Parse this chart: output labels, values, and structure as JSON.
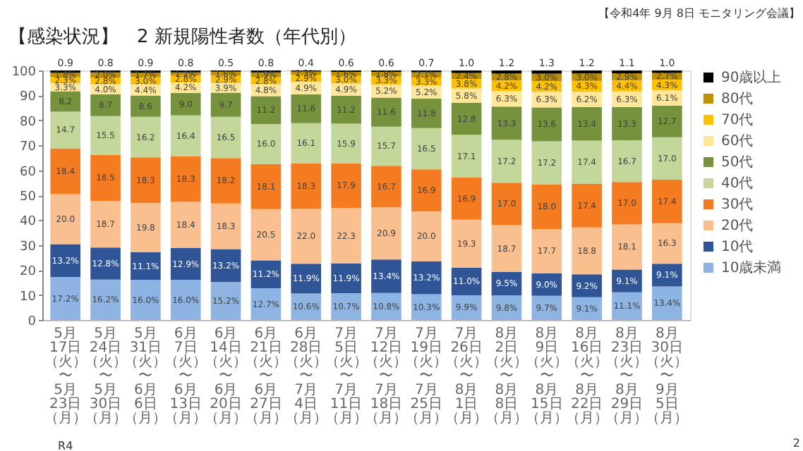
{
  "chart_data": {
    "type": "bar",
    "stacked": true,
    "title": "【感染状況】　2 新規陽性者数（年代別）",
    "annotations": [
      "【令和4年 9月 8日 モニタリング会議】",
      "R4",
      "2"
    ],
    "categories": [
      "5月17日（火）〜5月23日（月）",
      "5月24日（火）〜5月30日（月）",
      "5月31日（火）〜6月6日（月）",
      "6月7日（火）〜6月13日（月）",
      "6月14日（火）〜6月20日（月）",
      "6月21日（火）〜6月27日（月）",
      "6月28日（火）〜7月4日（月）",
      "7月5日（火）〜7月11日（月）",
      "7月12日（火）〜7月18日（月）",
      "7月19日（火）〜7月25日（月）",
      "7月26日（火）〜8月1日（月）",
      "8月2日（火）〜8月8日（月）",
      "8月9日（火）〜8月15日（月）",
      "8月16日（火）〜8月22日（月）",
      "8月23日（火）〜8月29日（月）",
      "8月30日（火）〜9月5日（月）"
    ],
    "ylim": [
      0,
      100
    ],
    "yticks": [
      0,
      10,
      20,
      30,
      40,
      50,
      60,
      70,
      80,
      90,
      100
    ],
    "legend": "right",
    "series": [
      {
        "name": "10歳未満",
        "color": "#8db4e2",
        "values": [
          17.2,
          16.2,
          16.0,
          16.0,
          15.2,
          12.7,
          10.6,
          10.7,
          10.8,
          10.3,
          9.9,
          9.8,
          9.7,
          9.1,
          11.1,
          13.4
        ],
        "value_labels": [
          "17.2%",
          "16.2%",
          "16.0%",
          "16.0%",
          "15.2%",
          "12.7%",
          "10.6%",
          "10.7%",
          "10.8%",
          "10.3%",
          "9.9%",
          "9.8%",
          "9.7%",
          "9.1%",
          "11.1%",
          "13.4%"
        ]
      },
      {
        "name": "10代",
        "color": "#2f5597",
        "values": [
          13.2,
          12.8,
          11.1,
          12.9,
          13.2,
          11.2,
          11.9,
          11.9,
          13.4,
          13.2,
          11.0,
          9.5,
          9.0,
          9.2,
          9.1,
          9.1
        ],
        "value_labels": [
          "13.2%",
          "12.8%",
          "11.1%",
          "12.9%",
          "13.2%",
          "11.2%",
          "11.9%",
          "11.9%",
          "13.4%",
          "13.2%",
          "11.0%",
          "9.5%",
          "9.0%",
          "9.2%",
          "9.1%",
          "9.1%"
        ]
      },
      {
        "name": "20代",
        "color": "#fabf8f",
        "values": [
          20.0,
          18.7,
          19.8,
          18.4,
          18.3,
          20.5,
          22.0,
          22.3,
          20.9,
          20.0,
          19.3,
          18.7,
          17.7,
          18.8,
          18.1,
          16.3
        ],
        "value_labels": [
          "20.0",
          "18.7",
          "19.8",
          "18.4",
          "18.3",
          "20.5",
          "22.0",
          "22.3",
          "20.9",
          "20.0",
          "19.3",
          "18.7",
          "17.7",
          "18.8",
          "18.1",
          "16.3"
        ]
      },
      {
        "name": "30代",
        "color": "#f47b20",
        "values": [
          18.4,
          18.5,
          18.3,
          18.3,
          18.2,
          18.1,
          18.3,
          17.9,
          16.7,
          16.9,
          16.9,
          17.0,
          18.0,
          17.4,
          17.0,
          17.4
        ],
        "value_labels": [
          "18.4",
          "18.5",
          "18.3",
          "18.3",
          "18.2",
          "18.1",
          "18.3",
          "17.9",
          "16.7",
          "16.9",
          "16.9",
          "17.0",
          "18.0",
          "17.4",
          "17.0",
          "17.4"
        ]
      },
      {
        "name": "40代",
        "color": "#c4d79b",
        "values": [
          14.7,
          15.5,
          16.2,
          16.4,
          16.5,
          16.0,
          16.1,
          15.9,
          15.7,
          16.5,
          17.1,
          17.2,
          17.2,
          17.4,
          16.7,
          17.0
        ],
        "value_labels": [
          "14.7",
          "15.5",
          "16.2",
          "16.4",
          "16.5",
          "16.0",
          "16.1",
          "15.9",
          "15.7",
          "16.5",
          "17.1",
          "17.2",
          "17.2",
          "17.4",
          "16.7",
          "17.0"
        ]
      },
      {
        "name": "50代",
        "color": "#76923c",
        "values": [
          8.2,
          8.7,
          8.6,
          9.0,
          9.7,
          11.2,
          11.6,
          11.2,
          11.6,
          11.8,
          12.8,
          13.3,
          13.6,
          13.4,
          13.3,
          12.7
        ],
        "value_labels": [
          "8.2",
          "8.7",
          "8.6",
          "9.0",
          "9.7",
          "11.2",
          "11.6",
          "11.2",
          "11.6",
          "11.8",
          "12.8",
          "13.3",
          "13.6",
          "13.4",
          "13.3",
          "12.7"
        ]
      },
      {
        "name": "60代",
        "color": "#ffe699",
        "values": [
          3.3,
          4.0,
          4.4,
          4.2,
          3.9,
          4.8,
          4.9,
          4.9,
          5.2,
          5.2,
          5.8,
          6.3,
          6.3,
          6.2,
          6.3,
          6.1
        ],
        "value_labels": [
          "3.3%",
          "4.0%",
          "4.4%",
          "4.2%",
          "3.9%",
          "4.8%",
          "4.9%",
          "4.9%",
          "5.2%",
          "5.2%",
          "5.8%",
          "6.3%",
          "6.3%",
          "6.2%",
          "6.3%",
          "6.1%"
        ]
      },
      {
        "name": "70代",
        "color": "#ffc000",
        "values": [
          2.3,
          2.8,
          3.0,
          2.8,
          2.9,
          2.8,
          2.9,
          3.0,
          3.3,
          3.3,
          3.8,
          4.2,
          4.2,
          4.3,
          4.4,
          4.3
        ],
        "value_labels": [
          "2.3%",
          "2.8%",
          "3.0%",
          "2.8%",
          "2.9%",
          "2.8%",
          "2.9%",
          "3.0%",
          "3.3%",
          "3.3%",
          "3.8%",
          "4.2%",
          "4.2%",
          "4.3%",
          "4.4%",
          "4.3%"
        ]
      },
      {
        "name": "80代",
        "color": "#c09000",
        "values": [
          1.8,
          2.0,
          1.7,
          1.2,
          1.6,
          1.9,
          1.3,
          1.6,
          1.8,
          2.1,
          2.4,
          2.8,
          3.0,
          3.0,
          2.9,
          2.7
        ],
        "value_labels": [
          "1.8%",
          "2.0%",
          "1.7%",
          "1.2%",
          "1.6%",
          "1.9%",
          "1.3%",
          "1.6%",
          "1.8%",
          "2.1%",
          "2.4%",
          "2.8%",
          "3.0%",
          "3.0%",
          "2.9%",
          "2.7%"
        ]
      },
      {
        "name": "90歳以上",
        "color": "#000000",
        "values": [
          0.9,
          0.8,
          0.9,
          0.8,
          0.5,
          0.8,
          0.4,
          0.6,
          0.6,
          0.7,
          1.0,
          1.2,
          1.3,
          1.2,
          1.1,
          1.0
        ],
        "value_labels": [
          "0.9",
          "0.8",
          "0.9",
          "0.8",
          "0.5",
          "0.8",
          "0.4",
          "0.6",
          "0.6",
          "0.7",
          "1.0",
          "1.2",
          "1.3",
          "1.2",
          "1.1",
          "1.0"
        ]
      }
    ]
  }
}
